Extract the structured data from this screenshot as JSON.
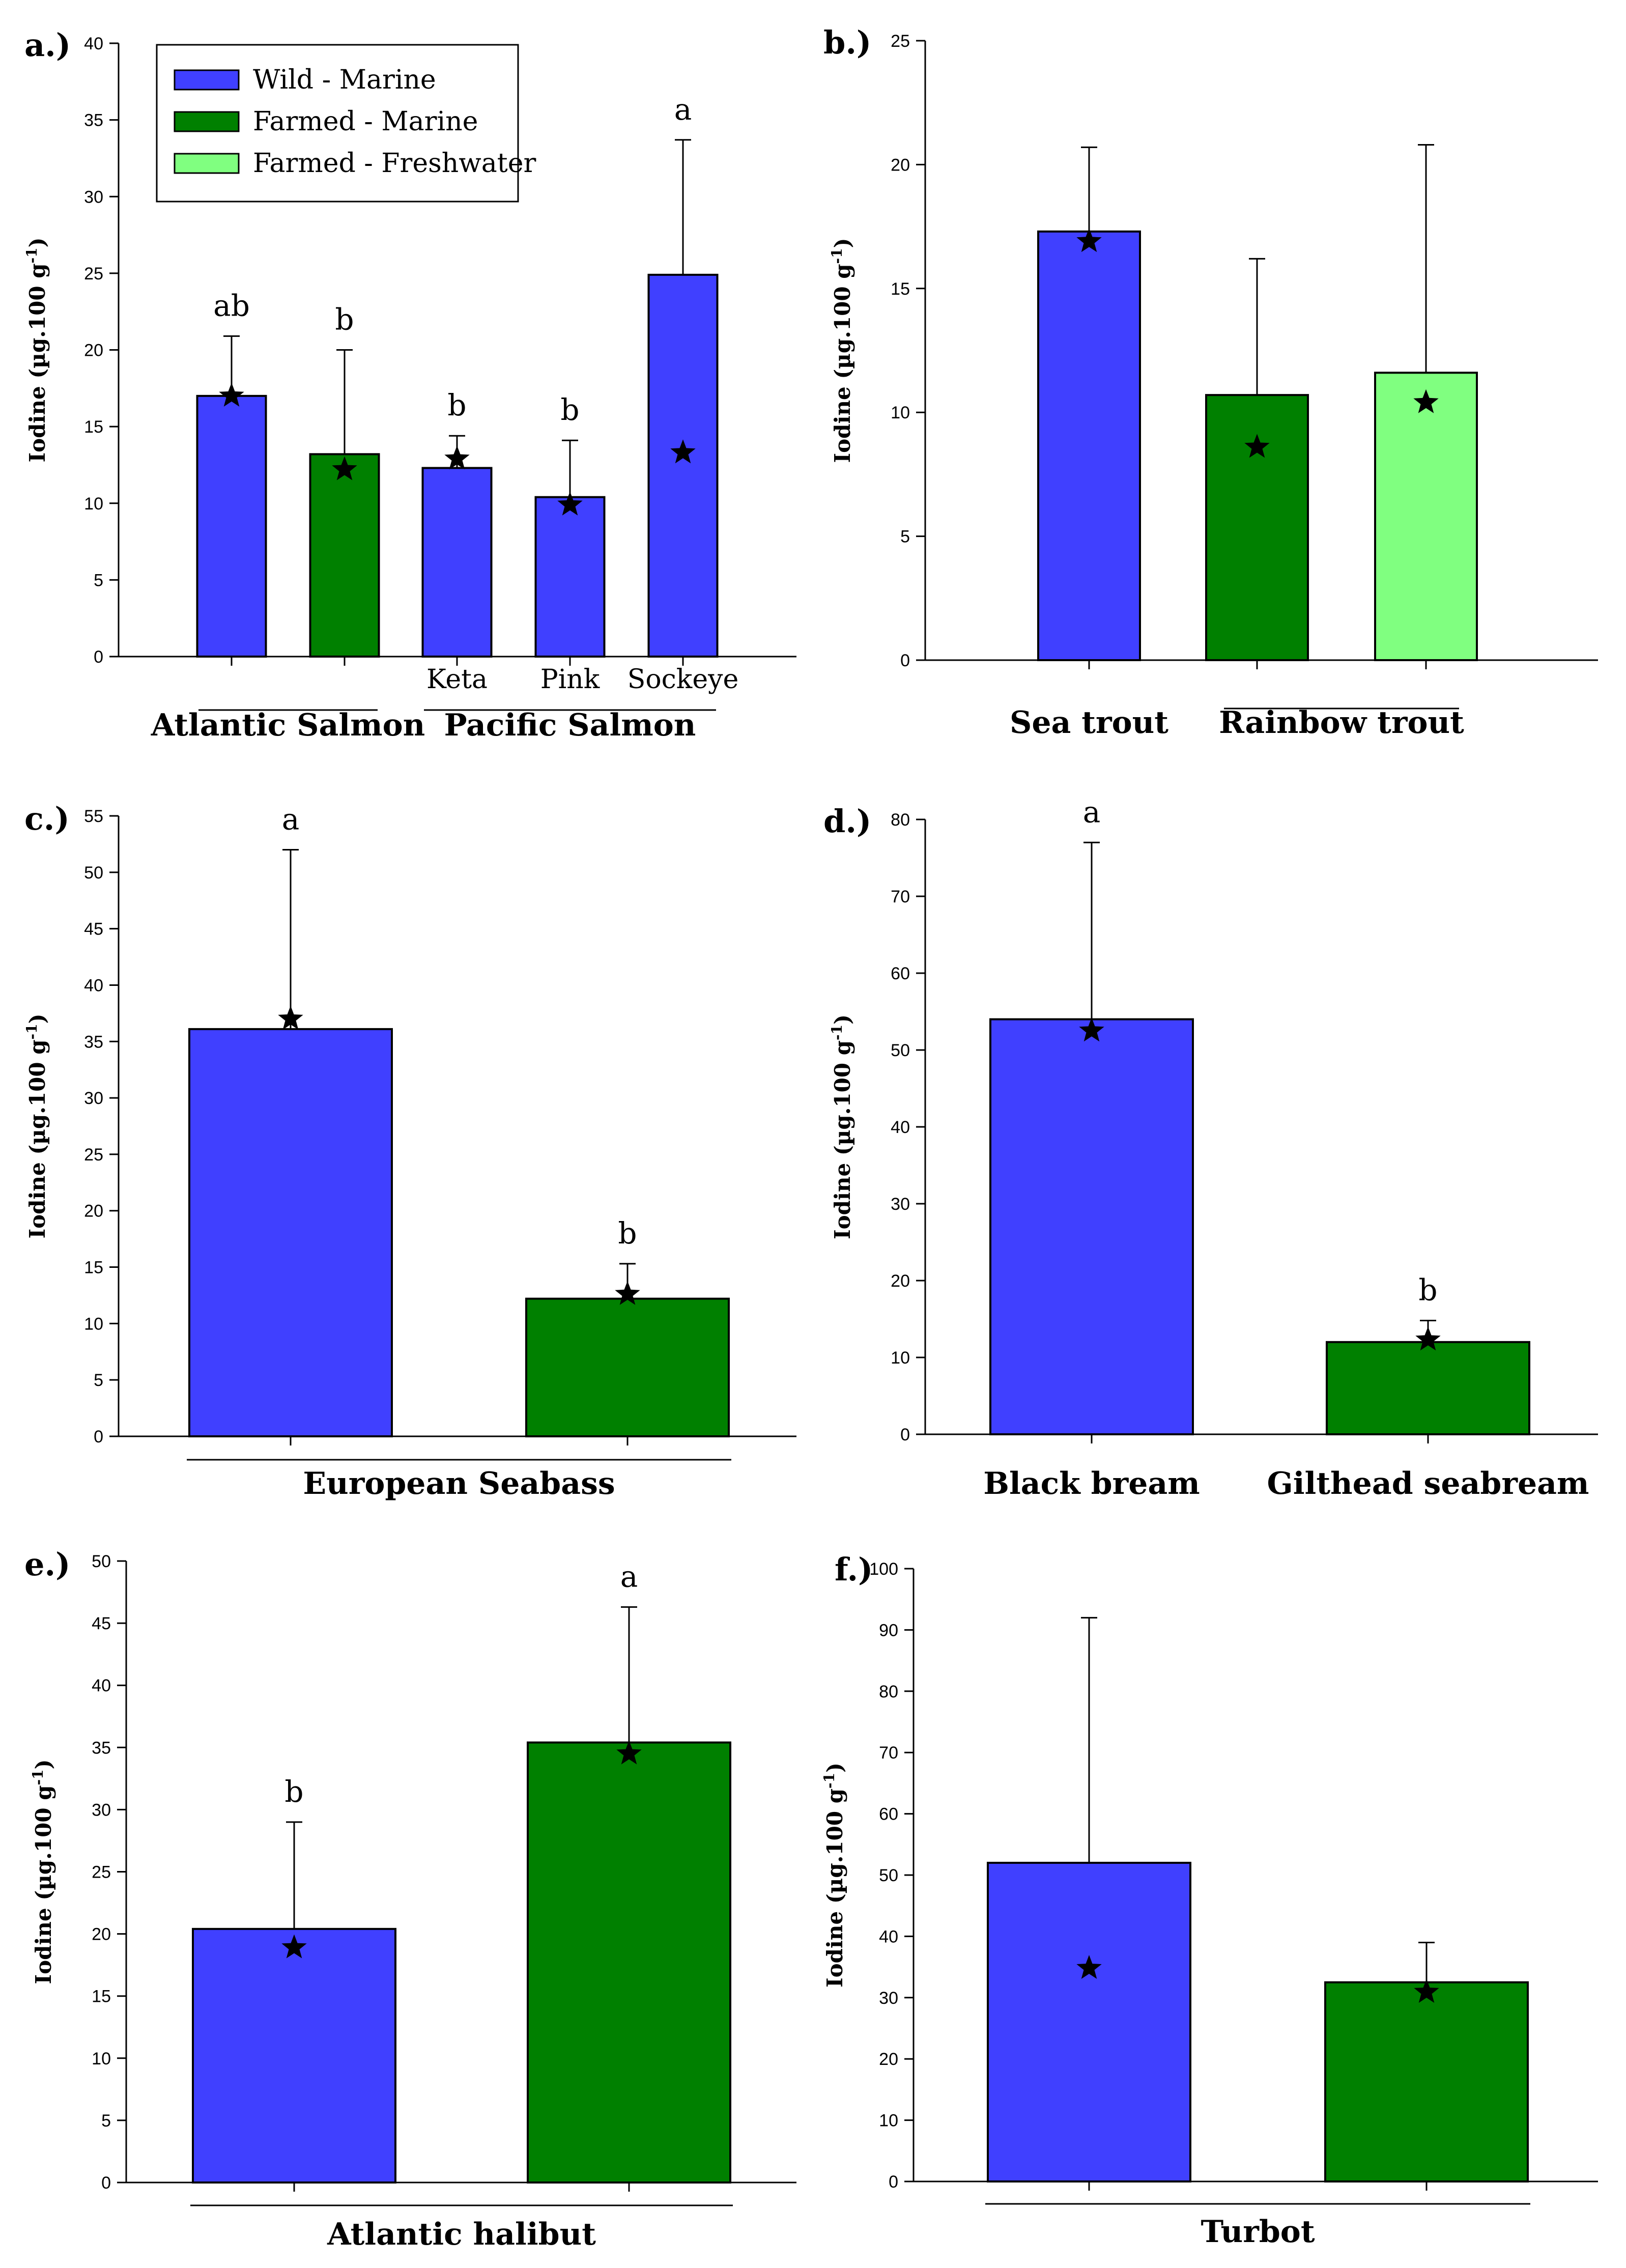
{
  "colors": {
    "wild_marine": "#4040ff",
    "farmed_marine": "#008000",
    "farmed_freshwater": "#80ff80"
  },
  "legend": [
    {
      "label": "Wild - Marine",
      "color_key": "wild_marine"
    },
    {
      "label": "Farmed - Marine",
      "color_key": "farmed_marine"
    },
    {
      "label": "Farmed - Freshwater",
      "color_key": "farmed_freshwater"
    }
  ],
  "chart_data": [
    {
      "panel": "a.)",
      "type": "bar",
      "ylabel": "Iodine (µg.100 g",
      "ylabel_sup": "-1",
      "ylabel_close": ")",
      "ylim": [
        0,
        40
      ],
      "yticks": [
        0,
        5,
        10,
        15,
        20,
        25,
        30,
        35,
        40
      ],
      "bars": [
        {
          "label": "",
          "value": 17.0,
          "err": 3.9,
          "star": 17.0,
          "sig": "ab",
          "color_key": "wild_marine"
        },
        {
          "label": "",
          "value": 13.2,
          "err": 6.8,
          "star": 12.2,
          "sig": "b",
          "color_key": "farmed_marine"
        },
        {
          "label": "Keta",
          "value": 12.3,
          "err": 2.1,
          "star": 12.9,
          "sig": "b",
          "color_key": "wild_marine"
        },
        {
          "label": "Pink",
          "value": 10.4,
          "err": 3.7,
          "star": 9.9,
          "sig": "b",
          "color_key": "wild_marine"
        },
        {
          "label": "Sockeye",
          "value": 24.9,
          "err": 8.8,
          "star": 13.3,
          "sig": "a",
          "color_key": "wild_marine"
        }
      ],
      "groups": [
        {
          "label": "Atlantic Salmon",
          "from": 0,
          "to": 1,
          "line": true
        },
        {
          "label": "Pacific Salmon",
          "from": 2,
          "to": 4,
          "line": true
        }
      ]
    },
    {
      "panel": "b.)",
      "type": "bar",
      "ylabel": "Iodine (µg.100 g",
      "ylabel_sup": "-1",
      "ylabel_close": ")",
      "ylim": [
        0,
        25
      ],
      "yticks": [
        0,
        5,
        10,
        15,
        20,
        25
      ],
      "bars": [
        {
          "label": "",
          "value": 17.3,
          "err": 3.4,
          "star": 16.9,
          "sig": "",
          "color_key": "wild_marine"
        },
        {
          "label": "",
          "value": 10.7,
          "err": 5.5,
          "star": 8.6,
          "sig": "",
          "color_key": "farmed_marine"
        },
        {
          "label": "",
          "value": 11.6,
          "err": 9.2,
          "star": 10.4,
          "sig": "",
          "color_key": "farmed_freshwater"
        }
      ],
      "groups": [
        {
          "label": "Sea trout",
          "from": 0,
          "to": 0,
          "line": false
        },
        {
          "label": "Rainbow trout",
          "from": 1,
          "to": 2,
          "line": true
        }
      ]
    },
    {
      "panel": "c.)",
      "type": "bar",
      "ylabel": "Iodine (µg.100 g",
      "ylabel_sup": "-1",
      "ylabel_close": ")",
      "ylim": [
        0,
        55
      ],
      "yticks": [
        0,
        5,
        10,
        15,
        20,
        25,
        30,
        35,
        40,
        45,
        50,
        55
      ],
      "bars": [
        {
          "label": "",
          "value": 36.1,
          "err": 15.9,
          "star": 37.0,
          "sig": "a",
          "color_key": "wild_marine"
        },
        {
          "label": "",
          "value": 12.2,
          "err": 3.1,
          "star": 12.6,
          "sig": "b",
          "color_key": "farmed_marine"
        }
      ],
      "groups": [
        {
          "label": "European Seabass",
          "from": 0,
          "to": 1,
          "line": true
        }
      ]
    },
    {
      "panel": "d.)",
      "type": "bar",
      "ylabel": "Iodine (µg.100 g",
      "ylabel_sup": "-1",
      "ylabel_close": ")",
      "ylim": [
        0,
        80
      ],
      "yticks": [
        0,
        10,
        20,
        30,
        40,
        50,
        60,
        70,
        80
      ],
      "bars": [
        {
          "label": "",
          "value": 54.0,
          "err": 23.0,
          "star": 52.5,
          "sig": "a",
          "color_key": "wild_marine"
        },
        {
          "label": "",
          "value": 12.0,
          "err": 2.8,
          "star": 12.3,
          "sig": "b",
          "color_key": "farmed_marine"
        }
      ],
      "groups": [
        {
          "label": "Black bream",
          "from": 0,
          "to": 0,
          "line": false
        },
        {
          "label": "Gilthead seabream",
          "from": 1,
          "to": 1,
          "line": false
        }
      ]
    },
    {
      "panel": "e.)",
      "type": "bar",
      "ylabel": "Iodine (µg.100 g",
      "ylabel_sup": "-1",
      "ylabel_close": ")",
      "ylim": [
        0,
        50
      ],
      "yticks": [
        0,
        5,
        10,
        15,
        20,
        25,
        30,
        35,
        40,
        45,
        50
      ],
      "bars": [
        {
          "label": "",
          "value": 20.4,
          "err": 8.6,
          "star": 18.9,
          "sig": "b",
          "color_key": "wild_marine"
        },
        {
          "label": "",
          "value": 35.4,
          "err": 10.9,
          "star": 34.5,
          "sig": "a",
          "color_key": "farmed_marine"
        }
      ],
      "groups": [
        {
          "label": "Atlantic halibut",
          "from": 0,
          "to": 1,
          "line": true
        }
      ]
    },
    {
      "panel": "f.)",
      "type": "bar",
      "ylabel": "Iodine (µg.100 g",
      "ylabel_sup": "-1",
      "ylabel_close": ")",
      "ylim": [
        0,
        100
      ],
      "yticks": [
        0,
        10,
        20,
        30,
        40,
        50,
        60,
        70,
        80,
        90,
        100
      ],
      "bars": [
        {
          "label": "",
          "value": 52.0,
          "err": 40.0,
          "star": 34.8,
          "sig": "",
          "color_key": "wild_marine"
        },
        {
          "label": "",
          "value": 32.5,
          "err": 6.5,
          "star": 30.9,
          "sig": "",
          "color_key": "farmed_marine"
        }
      ],
      "groups": [
        {
          "label": "Turbot",
          "from": 0,
          "to": 1,
          "line": true
        }
      ]
    }
  ]
}
